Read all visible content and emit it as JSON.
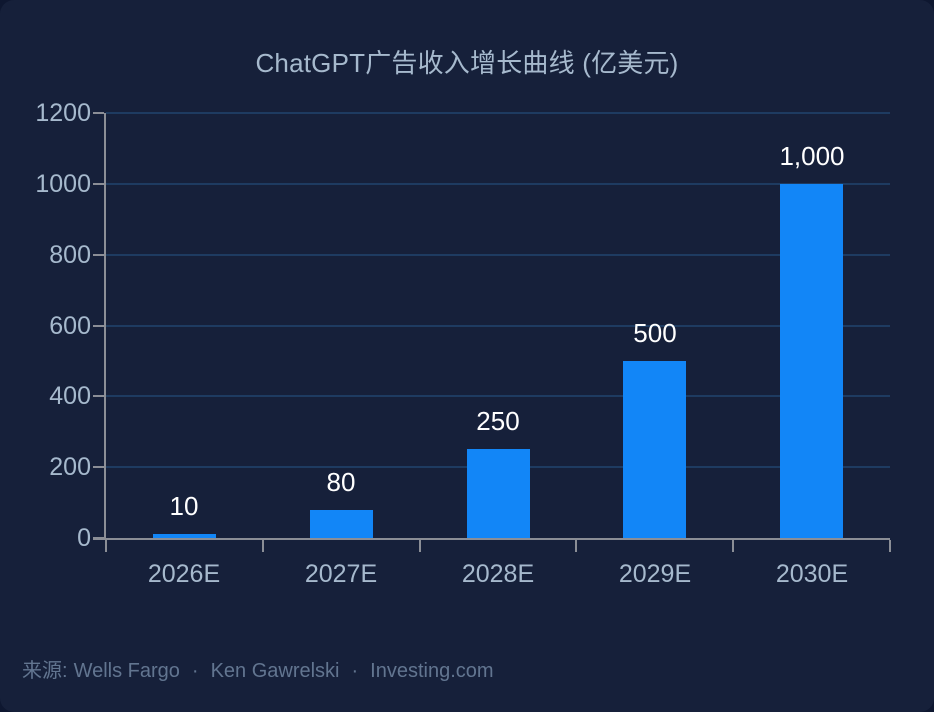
{
  "page": {
    "background": "#0e1730",
    "card_background": "#16203a"
  },
  "chart_data": {
    "type": "bar",
    "title": "ChatGPT广告收入增长曲线 (亿美元)",
    "categories": [
      "2026E",
      "2027E",
      "2028E",
      "2029E",
      "2030E"
    ],
    "values": [
      10,
      80,
      250,
      500,
      1000
    ],
    "value_labels": [
      "10",
      "80",
      "250",
      "500",
      "1,000"
    ],
    "ylim": [
      0,
      1200
    ],
    "yticks": [
      0,
      200,
      400,
      600,
      800,
      1000,
      1200
    ],
    "ytick_labels": [
      "0",
      "200",
      "400",
      "600",
      "800",
      "1000",
      "1200"
    ],
    "xlabel": "",
    "ylabel": "",
    "grid": true,
    "legend": "none",
    "colors": {
      "bar": "#1286f7",
      "grid": "#21426c",
      "axis": "#8b8e96",
      "tick_label": "#a6b9cd",
      "value_label": "#ffffff",
      "title": "#a6b9cd",
      "footer": "#627590"
    }
  },
  "footer": {
    "prefix": "来源:",
    "sources": [
      "Wells Fargo",
      "Ken Gawrelski",
      "Investing.com"
    ],
    "separator": "·"
  }
}
